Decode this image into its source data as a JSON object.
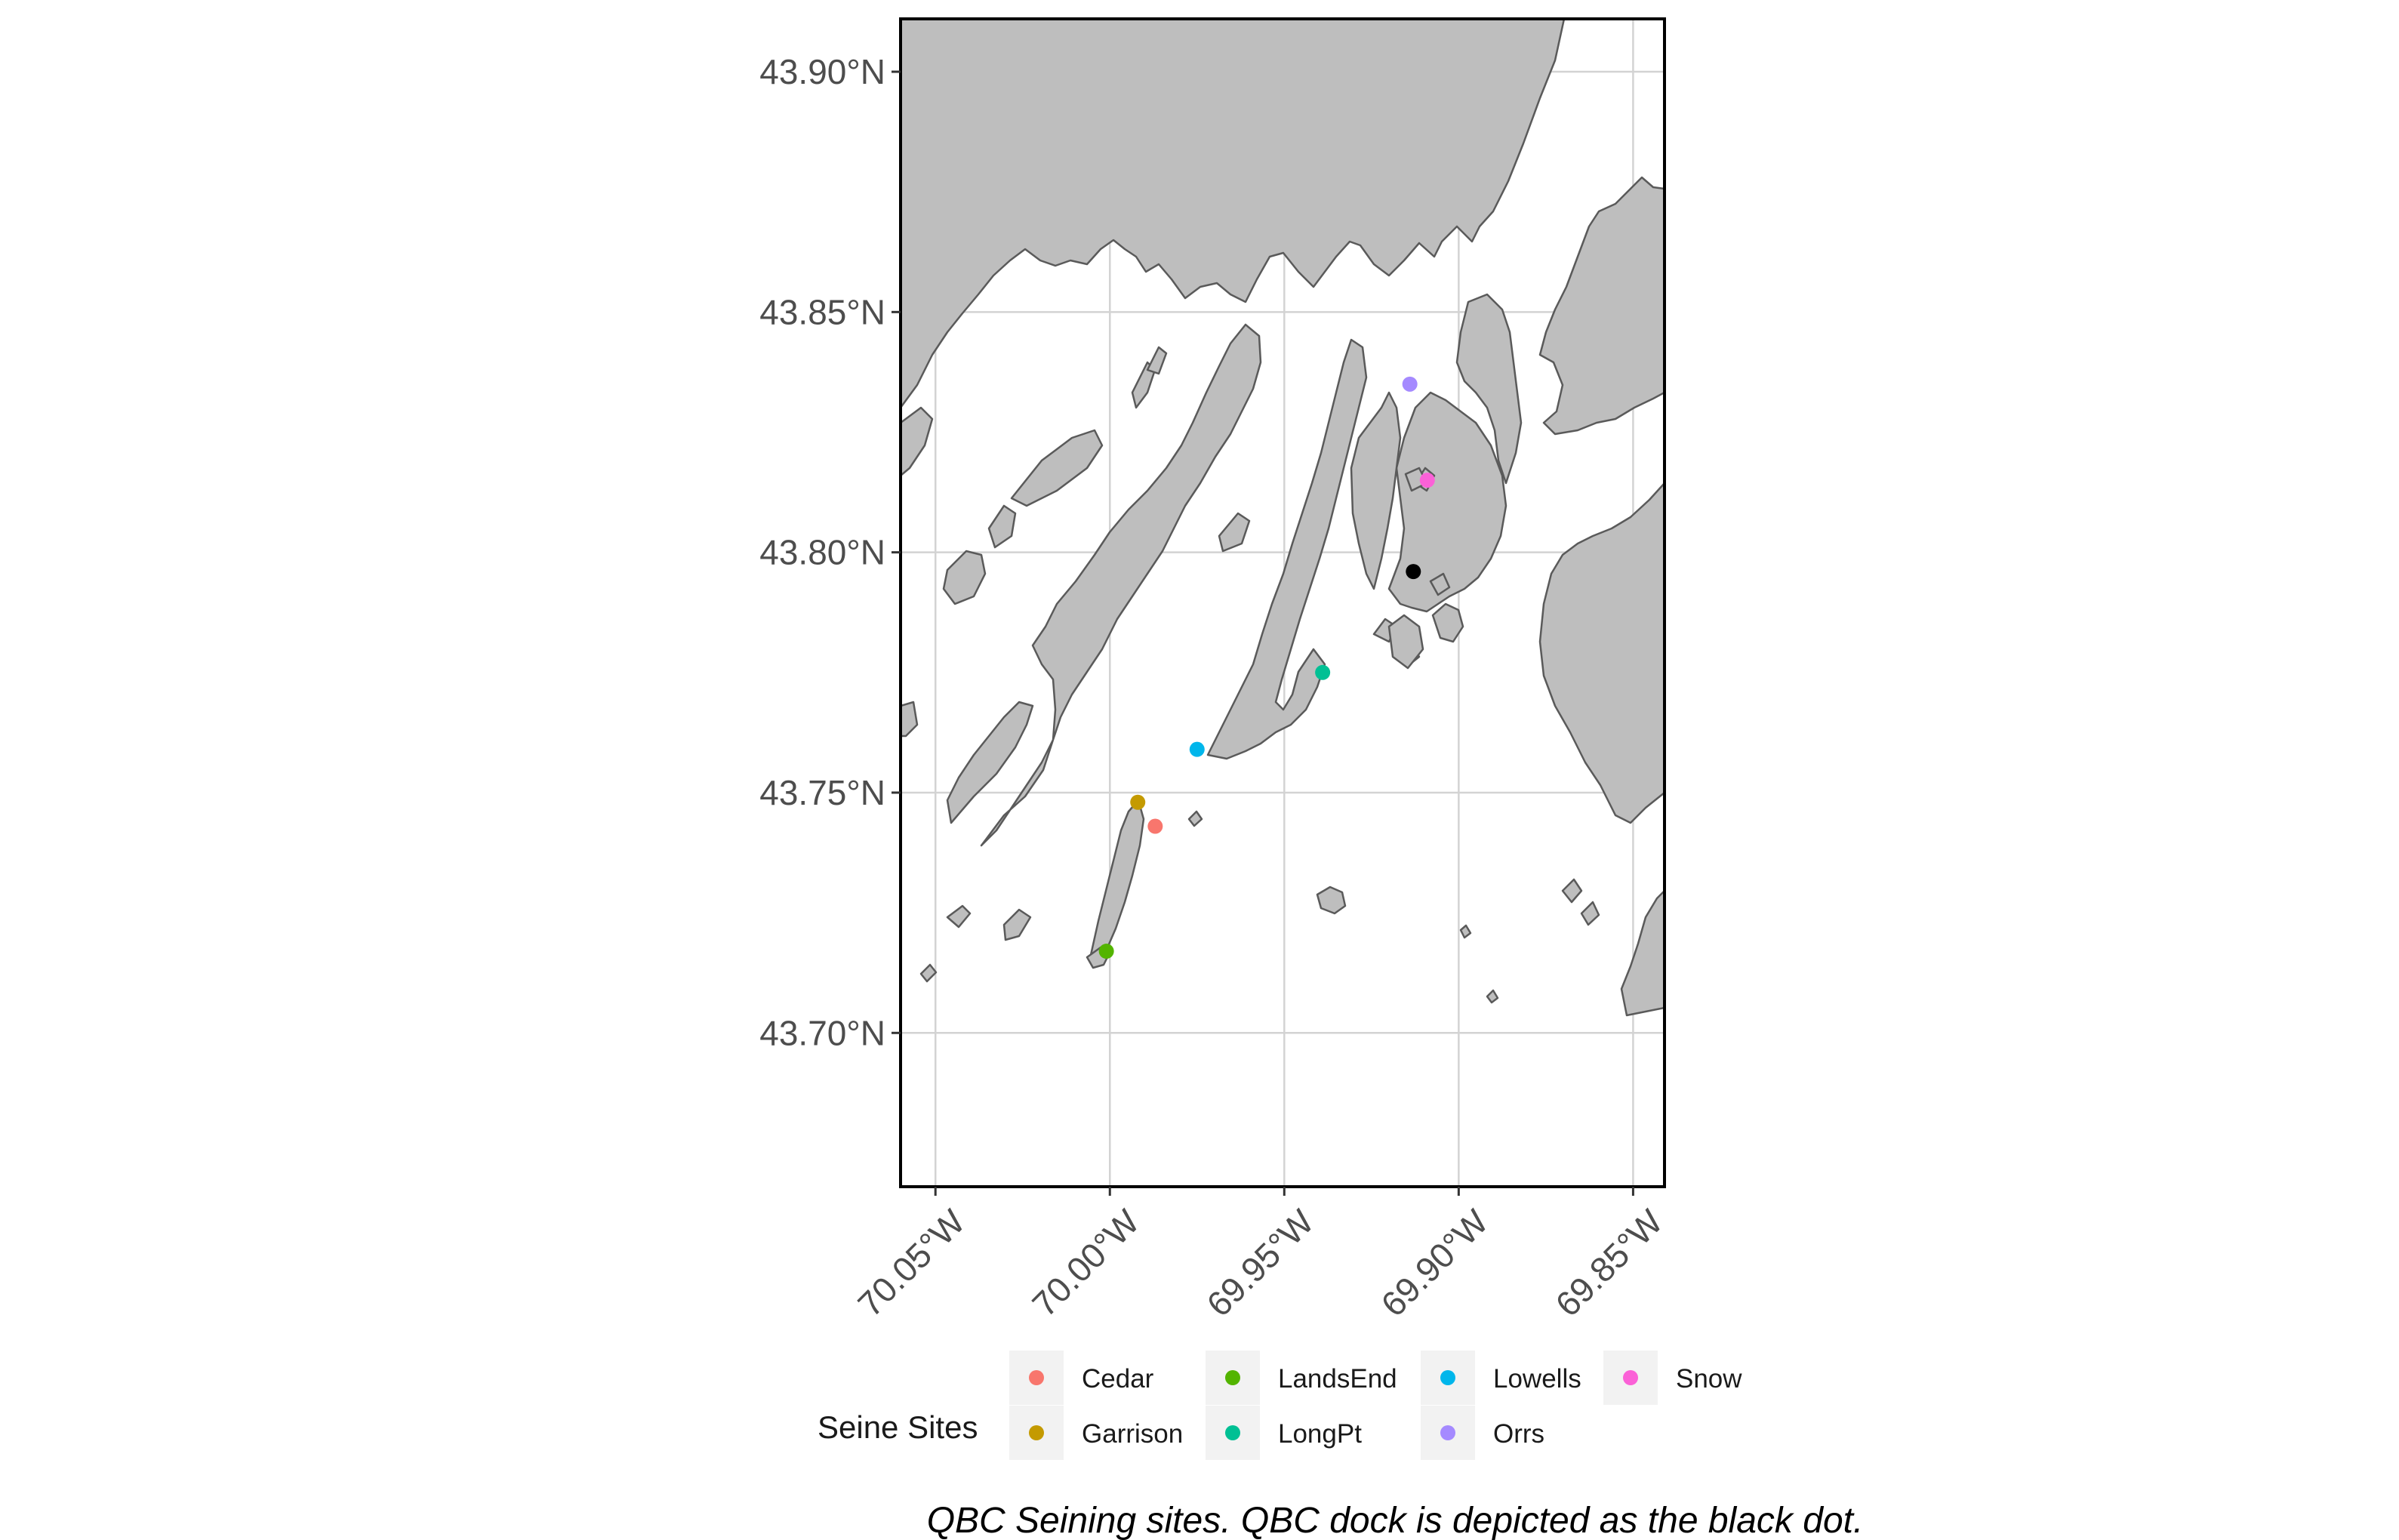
{
  "chart_data": {
    "type": "scatter",
    "map": true,
    "xlim": [
      -70.06,
      -69.841
    ],
    "ylim": [
      43.668,
      43.911
    ],
    "x_ticks": [
      {
        "value": -70.05,
        "label": "70.05°W"
      },
      {
        "value": -70.0,
        "label": "70.00°W"
      },
      {
        "value": -69.95,
        "label": "69.95°W"
      },
      {
        "value": -69.9,
        "label": "69.90°W"
      },
      {
        "value": -69.85,
        "label": "69.85°W"
      }
    ],
    "y_ticks": [
      {
        "value": 43.9,
        "label": "43.90°N"
      },
      {
        "value": 43.85,
        "label": "43.85°N"
      },
      {
        "value": 43.8,
        "label": "43.80°N"
      },
      {
        "value": 43.75,
        "label": "43.75°N"
      },
      {
        "value": 43.7,
        "label": "43.70°N"
      }
    ],
    "grid": true,
    "land_color": "#bebebe",
    "water_color": "#ffffff",
    "legend_title": "Seine Sites",
    "legend_position": "bottom",
    "series": [
      {
        "name": "Cedar",
        "color": "#F8766D",
        "x": -69.987,
        "y": 43.743
      },
      {
        "name": "Garrison",
        "color": "#C49A00",
        "x": -69.992,
        "y": 43.748
      },
      {
        "name": "LandsEnd",
        "color": "#53B400",
        "x": -70.001,
        "y": 43.717
      },
      {
        "name": "LongPt",
        "color": "#00C094",
        "x": -69.939,
        "y": 43.775
      },
      {
        "name": "Lowells",
        "color": "#00B6EB",
        "x": -69.975,
        "y": 43.759
      },
      {
        "name": "Orrs",
        "color": "#A58AFF",
        "x": -69.914,
        "y": 43.835
      },
      {
        "name": "Snow",
        "color": "#FB61D7",
        "x": -69.909,
        "y": 43.815
      }
    ],
    "dock": {
      "color": "#000000",
      "x": -69.913,
      "y": 43.796
    },
    "caption": "QBC Seining sites. QBC dock is depicted as the black dot."
  }
}
